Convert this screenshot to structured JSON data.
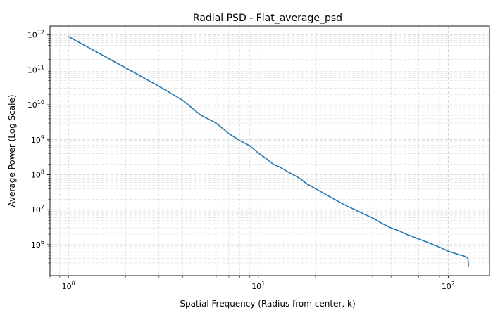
{
  "chart_data": {
    "type": "line",
    "title": "Radial PSD - Flat_average_psd",
    "xlabel": "Spatial Frequency (Radius from center, k)",
    "ylabel": "Average Power (Log Scale)",
    "xscale": "log",
    "yscale": "log",
    "xlim": [
      0.8,
      165
    ],
    "ylim": [
      130000,
      1800000000000
    ],
    "grid": "on (major and minor, dashed)",
    "x_ticks": [
      {
        "value": 1,
        "base": "10",
        "exp": "0"
      },
      {
        "value": 10,
        "base": "10",
        "exp": "1"
      },
      {
        "value": 100,
        "base": "10",
        "exp": "2"
      }
    ],
    "y_ticks": [
      {
        "value": 1000000,
        "base": "10",
        "exp": "6"
      },
      {
        "value": 10000000,
        "base": "10",
        "exp": "7"
      },
      {
        "value": 100000000,
        "base": "10",
        "exp": "8"
      },
      {
        "value": 1000000000,
        "base": "10",
        "exp": "9"
      },
      {
        "value": 10000000000,
        "base": "10",
        "exp": "10"
      },
      {
        "value": 100000000000,
        "base": "10",
        "exp": "11"
      },
      {
        "value": 1000000000000,
        "base": "10",
        "exp": "12"
      }
    ],
    "series": [
      {
        "color": "#1f77b4",
        "x": [
          1,
          2,
          3,
          4,
          5,
          6,
          7,
          8,
          9,
          10,
          11,
          12,
          13,
          14,
          15,
          16,
          17,
          18,
          19,
          20,
          22,
          24,
          26,
          28,
          30,
          33,
          36,
          40,
          45,
          50,
          55,
          60,
          70,
          80,
          90,
          100,
          110,
          120,
          126,
          127,
          128
        ],
        "y": [
          900000000000,
          115000000000,
          34000000000,
          13500000000,
          5000000000,
          3000000000,
          1500000000,
          950000000,
          680000000,
          420000000,
          290000000,
          200000000,
          165000000,
          130000000,
          105000000,
          88000000,
          70000000,
          55000000,
          47000000,
          40000000,
          30000000,
          23000000,
          18000000,
          14500000,
          12000000,
          9500000,
          7500000,
          5800000,
          4000000,
          3000000,
          2500000,
          2000000,
          1450000,
          1100000,
          850000,
          650000,
          550000,
          480000,
          430000,
          400000,
          230000
        ]
      }
    ]
  }
}
